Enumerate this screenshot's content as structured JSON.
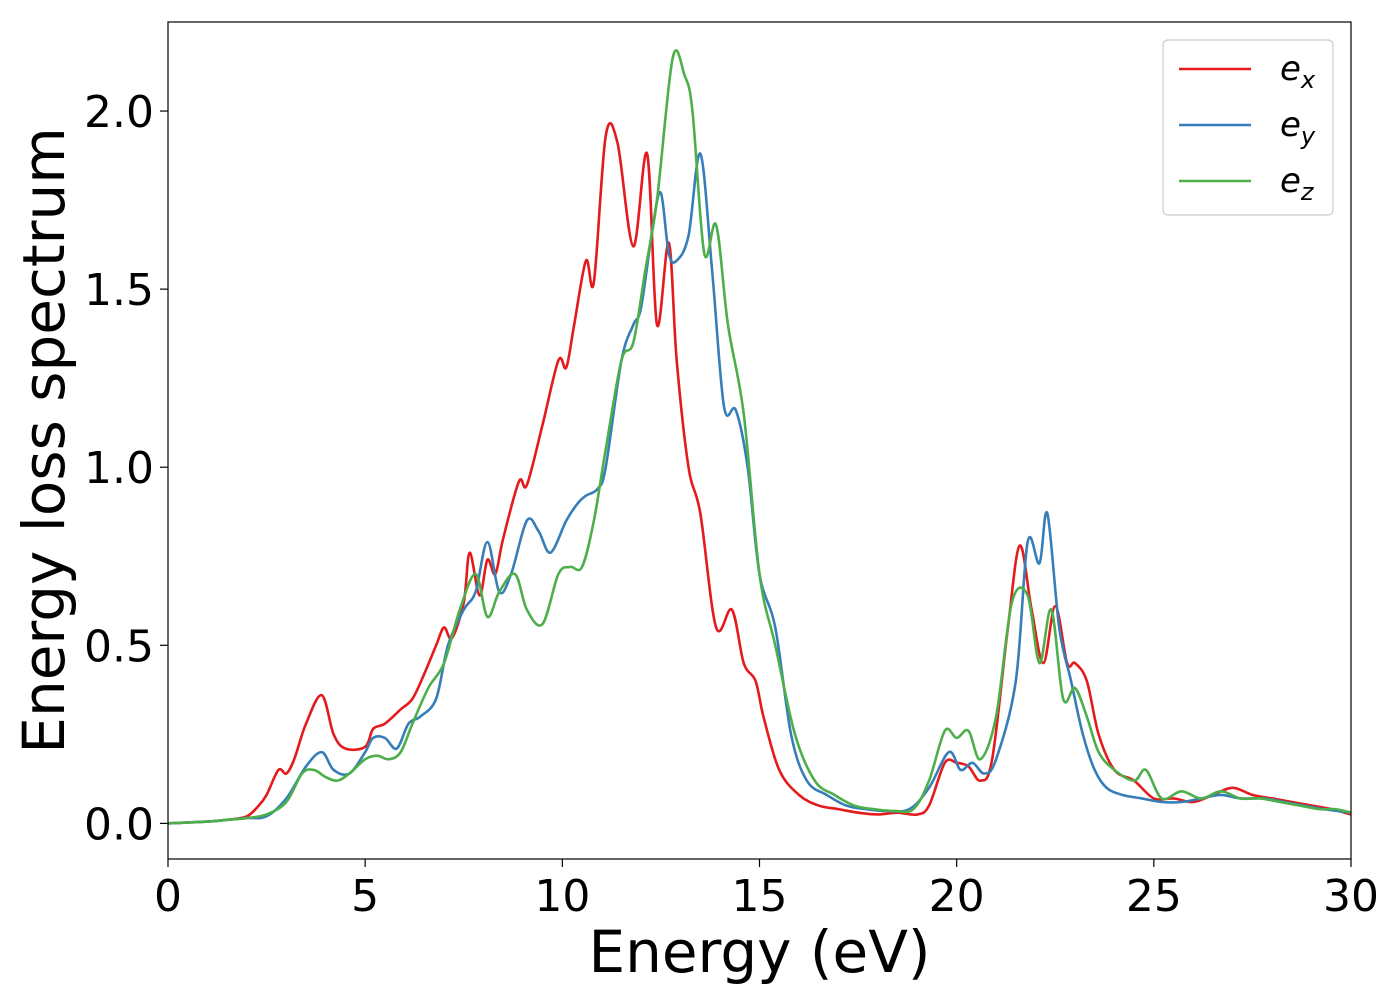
{
  "chart_data": {
    "type": "line",
    "xlabel": "Energy (eV)",
    "ylabel": "Energy loss spectrum",
    "xlim": [
      0,
      30
    ],
    "ylim": [
      -0.1,
      2.25
    ],
    "xticks": [
      0,
      5,
      10,
      15,
      20,
      25,
      30
    ],
    "xtick_labels": [
      "0",
      "5",
      "10",
      "15",
      "20",
      "25",
      "30"
    ],
    "yticks": [
      0.0,
      0.5,
      1.0,
      1.5,
      2.0
    ],
    "ytick_labels": [
      "0.0",
      "0.5",
      "1.0",
      "1.5",
      "2.0"
    ],
    "grid": false,
    "legend_position": "top-right",
    "series": [
      {
        "name": "e",
        "subscript": "x",
        "color": "#e41a1c",
        "x": [
          0,
          1,
          1.5,
          2,
          2.3,
          2.5,
          2.8,
          3.0,
          3.2,
          3.5,
          3.9,
          4.2,
          4.5,
          5.0,
          5.2,
          5.5,
          5.9,
          6.2,
          6.5,
          6.8,
          7.0,
          7.2,
          7.5,
          7.65,
          7.9,
          8.1,
          8.3,
          8.5,
          8.9,
          9.1,
          9.5,
          9.9,
          10.1,
          10.3,
          10.6,
          10.8,
          11.1,
          11.4,
          11.8,
          12.15,
          12.4,
          12.7,
          12.9,
          13.2,
          13.5,
          13.9,
          14.3,
          14.6,
          14.9,
          15.1,
          15.5,
          16.0,
          16.5,
          17.0,
          17.5,
          18.0,
          18.5,
          19.0,
          19.3,
          19.7,
          20.0,
          20.3,
          20.6,
          20.9,
          21.3,
          21.6,
          21.9,
          22.2,
          22.5,
          22.8,
          23.0,
          23.3,
          23.6,
          24.0,
          24.5,
          25.0,
          25.5,
          26.0,
          26.5,
          27.0,
          27.5,
          28.0,
          28.5,
          29.0,
          29.5,
          30.0
        ],
        "values": [
          0,
          0.005,
          0.01,
          0.02,
          0.05,
          0.08,
          0.15,
          0.14,
          0.18,
          0.28,
          0.36,
          0.25,
          0.21,
          0.215,
          0.265,
          0.28,
          0.32,
          0.35,
          0.42,
          0.5,
          0.55,
          0.52,
          0.62,
          0.76,
          0.64,
          0.74,
          0.7,
          0.8,
          0.96,
          0.95,
          1.12,
          1.3,
          1.28,
          1.4,
          1.58,
          1.52,
          1.93,
          1.91,
          1.62,
          1.88,
          1.4,
          1.63,
          1.3,
          1.0,
          0.87,
          0.55,
          0.6,
          0.45,
          0.4,
          0.3,
          0.15,
          0.08,
          0.05,
          0.04,
          0.03,
          0.025,
          0.03,
          0.025,
          0.05,
          0.17,
          0.17,
          0.16,
          0.12,
          0.18,
          0.55,
          0.78,
          0.6,
          0.45,
          0.61,
          0.45,
          0.45,
          0.4,
          0.25,
          0.15,
          0.12,
          0.07,
          0.07,
          0.06,
          0.08,
          0.1,
          0.08,
          0.07,
          0.06,
          0.05,
          0.04,
          0.025
        ]
      },
      {
        "name": "e",
        "subscript": "y",
        "color": "#377eb8",
        "x": [
          0,
          1,
          1.5,
          2,
          2.5,
          3.0,
          3.5,
          3.9,
          4.2,
          4.6,
          5.0,
          5.2,
          5.5,
          5.8,
          6.1,
          6.4,
          6.8,
          7.1,
          7.5,
          7.8,
          8.1,
          8.4,
          8.7,
          9.1,
          9.4,
          9.7,
          10.1,
          10.4,
          10.6,
          10.9,
          11.1,
          11.5,
          11.8,
          12.0,
          12.3,
          12.5,
          12.7,
          12.9,
          13.2,
          13.5,
          13.8,
          14.1,
          14.4,
          14.7,
          15.0,
          15.4,
          15.8,
          16.2,
          16.7,
          17.2,
          17.7,
          18.2,
          18.8,
          19.3,
          19.8,
          20.1,
          20.4,
          20.7,
          21.0,
          21.5,
          21.8,
          22.1,
          22.3,
          22.6,
          22.9,
          23.2,
          23.5,
          23.8,
          24.2,
          24.7,
          25.2,
          25.7,
          26.2,
          26.7,
          27.2,
          27.8,
          28.3,
          28.8,
          29.3,
          30.0
        ],
        "values": [
          0,
          0.005,
          0.01,
          0.015,
          0.02,
          0.07,
          0.16,
          0.2,
          0.15,
          0.14,
          0.2,
          0.24,
          0.24,
          0.21,
          0.28,
          0.3,
          0.35,
          0.5,
          0.6,
          0.65,
          0.79,
          0.65,
          0.7,
          0.85,
          0.82,
          0.76,
          0.85,
          0.9,
          0.92,
          0.94,
          1.0,
          1.3,
          1.4,
          1.45,
          1.68,
          1.77,
          1.6,
          1.58,
          1.65,
          1.88,
          1.55,
          1.17,
          1.16,
          1.0,
          0.7,
          0.55,
          0.25,
          0.12,
          0.08,
          0.05,
          0.04,
          0.035,
          0.04,
          0.1,
          0.2,
          0.15,
          0.17,
          0.14,
          0.18,
          0.4,
          0.79,
          0.73,
          0.87,
          0.55,
          0.4,
          0.25,
          0.15,
          0.1,
          0.08,
          0.07,
          0.06,
          0.06,
          0.07,
          0.08,
          0.07,
          0.07,
          0.06,
          0.05,
          0.04,
          0.03
        ]
      },
      {
        "name": "e",
        "subscript": "z",
        "color": "#4daf4a",
        "x": [
          0,
          1,
          1.5,
          2,
          2.5,
          3.0,
          3.4,
          3.7,
          4.0,
          4.3,
          4.6,
          5.0,
          5.3,
          5.6,
          5.9,
          6.2,
          6.6,
          7.0,
          7.4,
          7.8,
          8.1,
          8.4,
          8.8,
          9.1,
          9.5,
          9.9,
          10.2,
          10.5,
          10.8,
          11.1,
          11.5,
          11.8,
          12.1,
          12.4,
          12.8,
          13.1,
          13.3,
          13.6,
          13.9,
          14.2,
          14.6,
          15.0,
          15.4,
          15.9,
          16.4,
          16.9,
          17.4,
          17.9,
          18.4,
          18.9,
          19.3,
          19.7,
          20.0,
          20.3,
          20.6,
          21.0,
          21.4,
          21.8,
          22.1,
          22.4,
          22.7,
          23.0,
          23.3,
          23.6,
          24.0,
          24.5,
          24.8,
          25.2,
          25.7,
          26.2,
          26.7,
          27.2,
          27.7,
          28.2,
          28.7,
          29.2,
          29.6,
          30.0
        ],
        "values": [
          0,
          0.005,
          0.01,
          0.015,
          0.025,
          0.06,
          0.14,
          0.15,
          0.13,
          0.12,
          0.14,
          0.18,
          0.19,
          0.18,
          0.2,
          0.28,
          0.38,
          0.45,
          0.6,
          0.7,
          0.58,
          0.65,
          0.7,
          0.6,
          0.56,
          0.7,
          0.72,
          0.72,
          0.85,
          1.05,
          1.3,
          1.35,
          1.55,
          1.75,
          2.15,
          2.1,
          2.0,
          1.6,
          1.68,
          1.4,
          1.15,
          0.7,
          0.5,
          0.25,
          0.12,
          0.08,
          0.05,
          0.04,
          0.035,
          0.04,
          0.12,
          0.26,
          0.24,
          0.26,
          0.18,
          0.3,
          0.62,
          0.64,
          0.45,
          0.6,
          0.35,
          0.38,
          0.3,
          0.2,
          0.15,
          0.12,
          0.15,
          0.07,
          0.09,
          0.07,
          0.09,
          0.07,
          0.07,
          0.06,
          0.05,
          0.04,
          0.04,
          0.03
        ]
      }
    ]
  }
}
